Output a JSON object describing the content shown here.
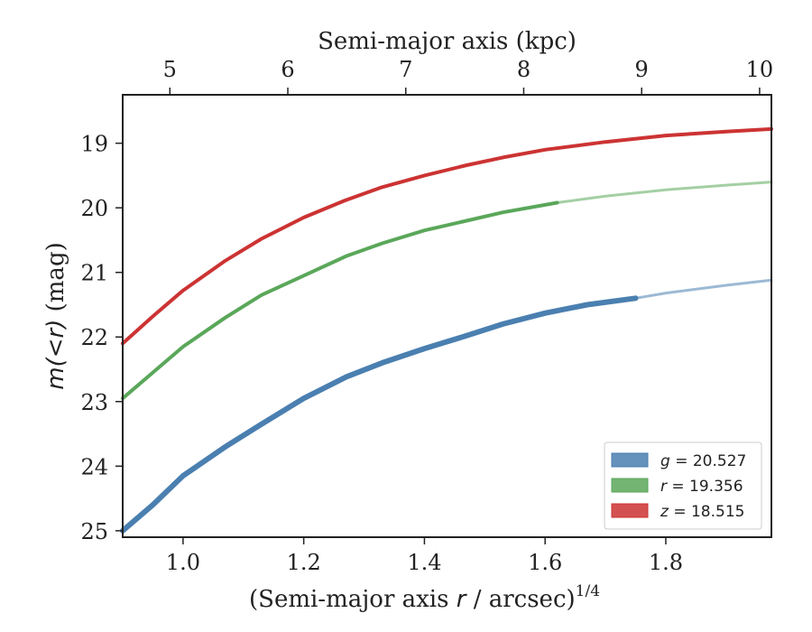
{
  "chart_data": {
    "type": "line",
    "xlabel_prefix": "(Semi-major axis ",
    "xlabel_var": "r",
    "xlabel_suffix": " / arcsec)",
    "xlabel_exp": "1/4",
    "x2label": "Semi-major axis (kpc)",
    "ylabel_var": "m(<r)",
    "ylabel_unit": " (mag)",
    "xlim": [
      0.9,
      1.975
    ],
    "ylim": [
      25.1,
      18.25
    ],
    "x2lim": [
      4.6,
      10.1
    ],
    "x_ticks": [
      1.0,
      1.2,
      1.4,
      1.6,
      1.8
    ],
    "x_tick_labels": [
      "1.0",
      "1.2",
      "1.4",
      "1.6",
      "1.8"
    ],
    "x2_ticks": [
      5,
      6,
      7,
      8,
      9,
      10
    ],
    "x2_tick_labels": [
      "5",
      "6",
      "7",
      "8",
      "9",
      "10"
    ],
    "y_ticks": [
      19,
      20,
      21,
      22,
      23,
      24,
      25
    ],
    "y_tick_labels": [
      "19",
      "20",
      "21",
      "22",
      "23",
      "24",
      "25"
    ],
    "grid": false,
    "legend_position": "bottom-right",
    "series": [
      {
        "name": "g",
        "label_var": "g",
        "label_value": " = 20.527",
        "color": "#4a7fb0",
        "x": [
          0.9,
          0.95,
          1.0,
          1.07,
          1.13,
          1.2,
          1.27,
          1.33,
          1.4,
          1.47,
          1.53,
          1.6,
          1.67,
          1.75,
          1.8,
          1.9,
          1.975
        ],
        "y": [
          25.0,
          24.6,
          24.15,
          23.7,
          23.35,
          22.95,
          22.62,
          22.4,
          22.18,
          21.98,
          21.8,
          21.63,
          21.5,
          21.4,
          21.32,
          21.2,
          21.12
        ],
        "solid_until": 1.75
      },
      {
        "name": "r",
        "label_var": "r",
        "label_value": " = 19.356",
        "color": "#5aa75a",
        "x": [
          0.9,
          0.95,
          1.0,
          1.07,
          1.13,
          1.2,
          1.27,
          1.33,
          1.4,
          1.47,
          1.53,
          1.62,
          1.7,
          1.8,
          1.9,
          1.975
        ],
        "y": [
          22.95,
          22.55,
          22.15,
          21.7,
          21.35,
          21.05,
          20.75,
          20.55,
          20.35,
          20.2,
          20.07,
          19.92,
          19.82,
          19.72,
          19.65,
          19.6
        ],
        "solid_until": 1.62
      },
      {
        "name": "z",
        "label_var": "z",
        "label_value": " = 18.515",
        "color": "#cc3333",
        "x": [
          0.9,
          0.95,
          1.0,
          1.07,
          1.13,
          1.2,
          1.27,
          1.33,
          1.4,
          1.47,
          1.53,
          1.6,
          1.7,
          1.8,
          1.9,
          1.975
        ],
        "y": [
          22.1,
          21.68,
          21.28,
          20.82,
          20.48,
          20.15,
          19.88,
          19.68,
          19.5,
          19.34,
          19.22,
          19.1,
          18.98,
          18.88,
          18.82,
          18.78
        ],
        "solid_until": 1.975
      }
    ]
  }
}
